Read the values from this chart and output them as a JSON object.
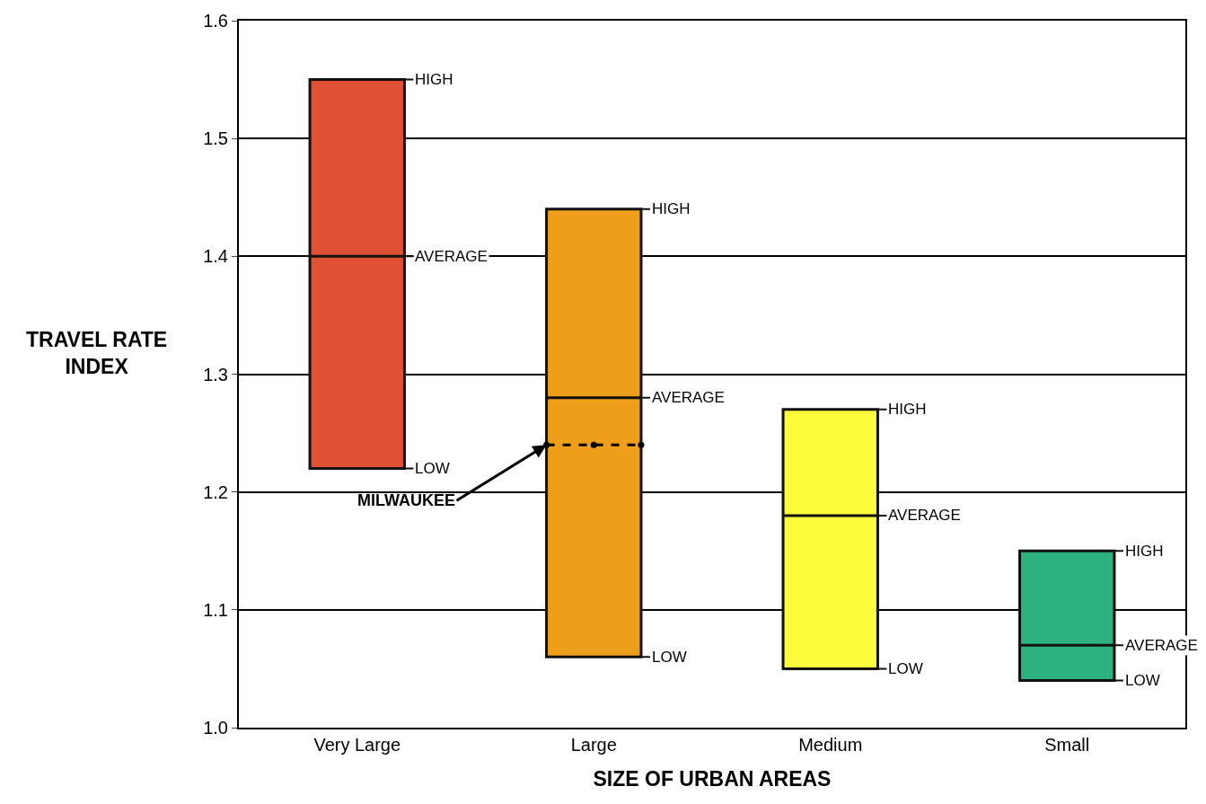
{
  "chart_data": {
    "type": "box",
    "xlabel": "SIZE OF URBAN AREAS",
    "ylabel": "TRAVEL RATE INDEX",
    "categories": [
      "Very Large",
      "Large",
      "Medium",
      "Small"
    ],
    "series": [
      {
        "colors": [
          "#e05035",
          "#ed9e1a",
          "#fcfc3c",
          "#2db27f"
        ],
        "boxes": [
          {
            "low": 1.22,
            "q1": 1.22,
            "median": 1.4,
            "q3": 1.55,
            "high": 1.55
          },
          {
            "low": 1.06,
            "q1": 1.06,
            "median": 1.28,
            "q3": 1.44,
            "high": 1.44
          },
          {
            "low": 1.05,
            "q1": 1.05,
            "median": 1.18,
            "q3": 1.27,
            "high": 1.27
          },
          {
            "low": 1.04,
            "q1": 1.04,
            "median": 1.07,
            "q3": 1.15,
            "high": 1.15
          }
        ]
      },
      {
        "type": "line",
        "name": "MILWAUKEE",
        "x": [
          "Large"
        ],
        "values": [
          1.24
        ],
        "color": "#000000",
        "line_style": "dashed",
        "marker": "circle"
      }
    ],
    "annotations": [
      "HIGH",
      "AVERAGE",
      "LOW",
      "HIGH",
      "AVERAGE",
      "LOW",
      "HIGH",
      "AVERAGE",
      "LOW",
      "HIGH",
      "AVERAGE",
      "LOW"
    ],
    "ylim": [
      1.0,
      1.6
    ],
    "yticks": [
      {
        "value": 1.0,
        "label": "1.0"
      },
      1.1,
      1.2,
      1.3,
      1.4,
      1.5,
      1.6
    ],
    "grid": "y"
  }
}
